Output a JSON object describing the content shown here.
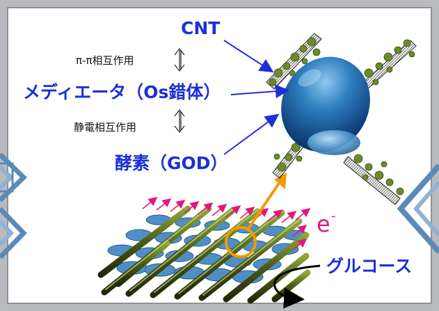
{
  "labels": {
    "cnt": "CNT",
    "pi_interaction": "π-π相互作用",
    "mediator": "メディエータ（Os錯体）",
    "electrostatic_interaction": "静電相互作用",
    "enzyme": "酵素（GOD）",
    "electron": "e",
    "electron_superscript": "-",
    "glucose": "グルコース"
  },
  "colors": {
    "label_blue": "#1d2fd8",
    "electron_magenta": "#e0197a",
    "enzyme_blue": "#1b5fa0",
    "arrow_orange": "#f39a00",
    "fiber_olive": "#5a6b1e",
    "frame_gray": "#b8babd"
  },
  "icons": {
    "interaction_arrow": "double-vertical-arrow-icon",
    "nav_left": "chevron-right-icon",
    "nav_right": "chevron-left-icon"
  }
}
